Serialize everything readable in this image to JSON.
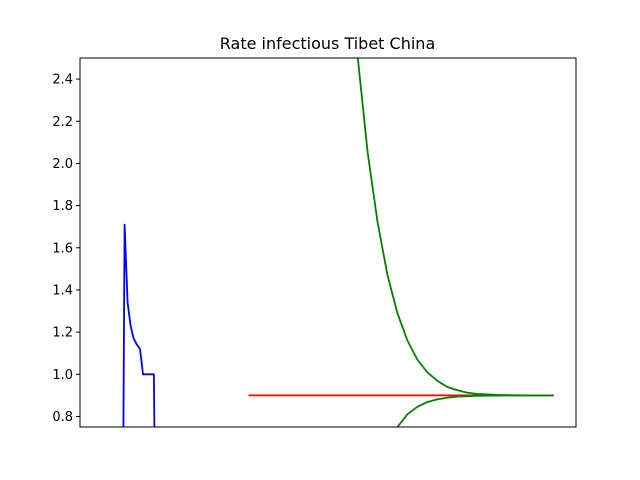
{
  "chart_data": {
    "type": "line",
    "title": "Rate infectious Tibet China",
    "xlabel": "",
    "ylabel": "",
    "x_ticks_shown": false,
    "x_range": [
      0,
      100
    ],
    "ylim": [
      0.75,
      2.5
    ],
    "y_ticks": [
      "0.8",
      "1.0",
      "1.2",
      "1.4",
      "1.6",
      "1.8",
      "2.0",
      "2.2",
      "2.4"
    ],
    "grid": false,
    "legend": "none",
    "series": [
      {
        "color": "#0000ff",
        "points": [
          [
            8.75,
            0.75
          ],
          [
            9.0,
            1.71
          ],
          [
            9.6,
            1.34
          ],
          [
            10.2,
            1.23
          ],
          [
            10.8,
            1.17
          ],
          [
            11.5,
            1.14
          ],
          [
            12.1,
            1.12
          ],
          [
            12.7,
            1.0
          ],
          [
            13.5,
            1.0
          ],
          [
            14.5,
            1.0
          ],
          [
            14.9,
            1.0
          ],
          [
            15.0,
            0.75
          ]
        ]
      },
      {
        "color": "#ff0000",
        "points": [
          [
            34.0,
            0.9
          ],
          [
            95.5,
            0.9
          ]
        ]
      },
      {
        "color": "#008000",
        "points": [
          [
            56.0,
            2.5
          ],
          [
            58.0,
            2.05
          ],
          [
            60.0,
            1.72
          ],
          [
            62.0,
            1.47
          ],
          [
            64.0,
            1.29
          ],
          [
            66.0,
            1.16
          ],
          [
            68.0,
            1.07
          ],
          [
            70.0,
            1.01
          ],
          [
            72.0,
            0.97
          ],
          [
            74.0,
            0.94
          ],
          [
            76.0,
            0.925
          ],
          [
            78.0,
            0.913
          ],
          [
            80.0,
            0.907
          ],
          [
            84.0,
            0.902
          ],
          [
            90.0,
            0.9
          ],
          [
            95.5,
            0.9
          ]
        ]
      },
      {
        "color": "#008000",
        "points": [
          [
            64.0,
            0.75
          ],
          [
            65.0,
            0.78
          ],
          [
            66.0,
            0.81
          ],
          [
            68.0,
            0.846
          ],
          [
            70.0,
            0.868
          ],
          [
            72.0,
            0.881
          ],
          [
            74.0,
            0.889
          ],
          [
            76.0,
            0.894
          ],
          [
            80.0,
            0.898
          ],
          [
            86.0,
            0.9
          ],
          [
            95.5,
            0.9
          ]
        ]
      }
    ]
  }
}
